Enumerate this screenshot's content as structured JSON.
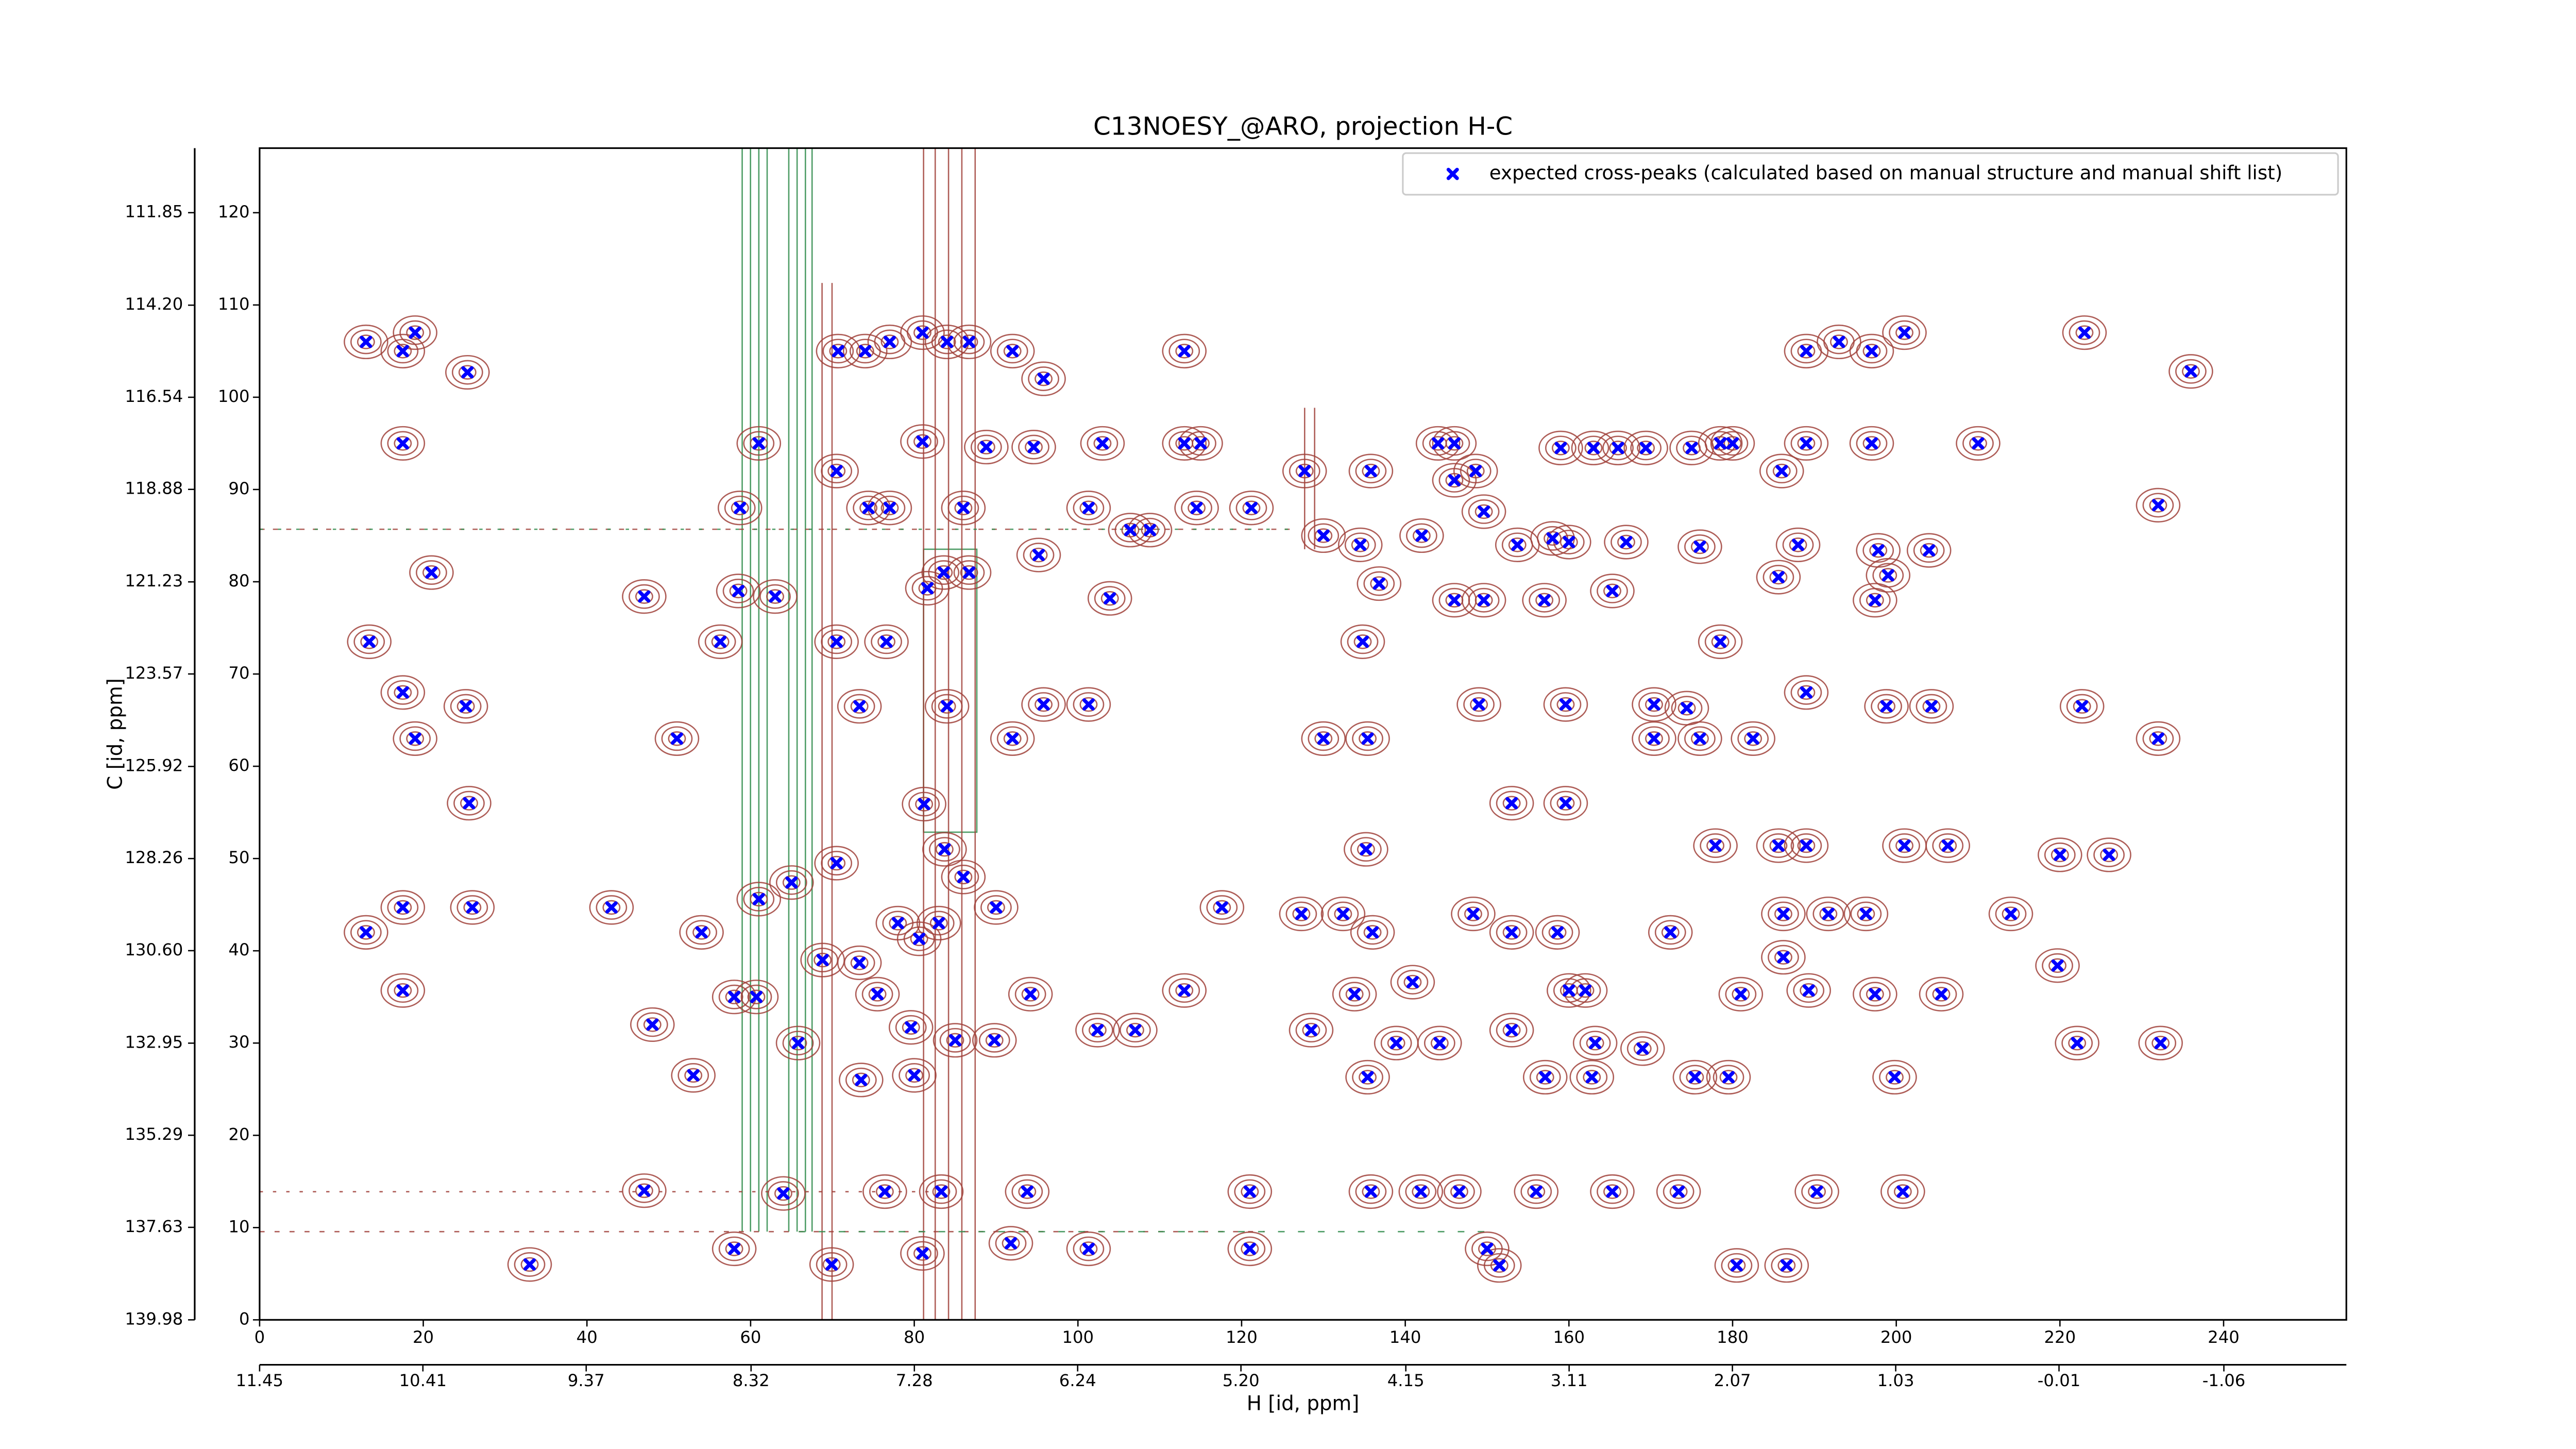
{
  "chart_data": {
    "type": "scatter",
    "title": "C13NOESY_@ARO, projection H-C",
    "xlabel": "H [id, ppm]",
    "ylabel": "C [id, ppm]",
    "xlim": [
      0,
      255
    ],
    "ylim": [
      0,
      127
    ],
    "xticks": [
      0,
      20,
      40,
      60,
      80,
      100,
      120,
      140,
      160,
      180,
      200,
      220,
      240
    ],
    "yticks": [
      0,
      10,
      20,
      30,
      40,
      50,
      60,
      70,
      80,
      90,
      100,
      110,
      120
    ],
    "x2lim": [
      11.45,
      -1.84
    ],
    "x2ticks": [
      11.45,
      10.41,
      9.37,
      8.32,
      7.28,
      6.24,
      {
        "value": 5.2,
        "label": "5.20"
      },
      4.15,
      3.11,
      2.07,
      1.03,
      -0.01,
      -1.06
    ],
    "y2lim": [
      139.98,
      110.21
    ],
    "y2ticks": [
      139.98,
      137.63,
      135.29,
      132.95,
      {
        "value": 130.6,
        "label": "130.60"
      },
      128.26,
      125.92,
      123.57,
      121.23,
      118.88,
      116.54,
      {
        "value": 114.2,
        "label": "114.20"
      },
      111.85
    ],
    "legend": "upper right",
    "x": [
      13,
      17.5,
      19,
      25.4,
      17.5,
      21,
      13.4,
      17.5,
      19,
      25.2,
      25.6,
      13,
      17.5,
      26,
      17.5,
      43,
      48,
      51,
      47,
      33,
      47,
      53,
      54,
      58,
      60.7,
      61,
      64,
      63,
      58.5,
      56.3,
      65.8,
      65,
      58.7,
      61,
      70.7,
      74,
      77,
      81,
      84,
      86.7,
      92,
      95.8,
      103,
      113,
      115,
      113,
      189,
      193,
      197,
      201,
      223,
      236,
      144,
      146,
      159,
      163,
      166,
      169.4,
      175,
      178.5,
      180,
      189,
      197,
      210,
      127.7,
      135.8,
      146,
      148.6,
      186,
      232,
      130,
      134.5,
      142,
      149.6,
      153.7,
      158,
      160,
      167,
      176,
      188,
      197.8,
      204,
      136.8,
      146,
      149.6,
      157,
      165.3,
      185.6,
      197.4,
      199,
      134.8,
      178.5,
      149,
      159.6,
      170.4,
      174.4,
      189,
      198.8,
      204.3,
      222.7,
      130,
      135.4,
      170.4,
      176,
      182.5,
      232,
      153,
      159.6,
      135.2,
      177.9,
      185.6,
      189,
      201,
      206.3,
      220,
      226,
      127.3,
      132.4,
      136,
      148.3,
      153,
      158.6,
      172.4,
      186.2,
      191.7,
      196.3,
      214,
      186.2,
      219.7,
      133.8,
      140.9,
      160,
      162,
      181,
      189.3,
      197.4,
      205.5,
      128.5,
      138.9,
      144.2,
      153,
      163.2,
      169,
      222.1,
      232.3,
      135.4,
      157.1,
      162.8,
      175.4,
      179.5,
      199.8,
      135.8,
      141.9,
      146.6,
      156,
      165.3,
      173.4,
      190.3,
      200.8,
      150,
      151.5,
      180.5,
      186.6,
      121,
      121,
      101.3,
      91.8,
      81,
      69.9,
      58,
      76.4,
      83.3,
      93.8,
      80.6,
      83.7,
      86,
      90,
      94.2,
      75.5,
      79.6,
      85,
      89.8,
      102.4,
      107,
      113,
      117.6,
      68.8,
      73.3,
      70.5,
      73.5,
      80,
      83,
      78,
      76.6,
      70.5,
      73.3,
      84,
      92,
      95.8,
      101.3,
      81.2,
      81.6,
      83.6,
      86.7,
      86,
      77,
      74.4,
      70.5,
      81,
      88.8,
      94.6,
      101.3,
      106.4,
      108.8,
      95.2,
      103.9,
      114.5,
      121.2
    ],
    "series": [
      {
        "name": "expected cross-peaks (calculated based on manual structure and manual shift list)",
        "color": "#0000ff",
        "values": [
          106,
          105,
          107,
          102.7,
          95,
          81,
          73.5,
          68,
          63,
          66.5,
          56,
          42,
          44.7,
          44.7,
          35.7,
          44.7,
          32,
          63,
          78.4,
          6,
          14,
          26.5,
          42,
          35,
          35,
          45.6,
          13.7,
          78.4,
          79,
          73.5,
          30,
          47.4,
          88,
          95,
          105,
          105,
          106,
          107,
          106,
          106,
          105,
          102,
          95,
          95,
          95,
          105,
          105,
          106,
          105,
          107,
          107,
          102.8,
          95,
          95,
          94.5,
          94.5,
          94.5,
          94.5,
          94.5,
          95,
          95,
          95,
          95,
          95,
          92,
          92,
          91,
          92,
          92,
          88.3,
          85,
          84,
          85,
          87.6,
          84,
          84.7,
          84.3,
          84.3,
          83.8,
          84,
          83.4,
          83.4,
          79.8,
          78,
          78,
          78,
          79,
          80.5,
          78,
          80.7,
          73.5,
          73.5,
          66.7,
          66.7,
          66.7,
          66.3,
          68,
          66.5,
          66.5,
          66.5,
          63,
          63,
          63,
          63,
          63,
          63,
          56,
          56,
          51,
          51.4,
          51.4,
          51.4,
          51.4,
          51.4,
          50.4,
          50.4,
          44,
          44,
          42,
          44,
          42,
          42,
          42,
          44,
          44,
          44,
          44,
          39.3,
          38.4,
          35.3,
          36.6,
          35.7,
          35.7,
          35.3,
          35.7,
          35.3,
          35.3,
          31.4,
          30,
          30,
          31.4,
          30,
          29.4,
          30,
          30,
          26.3,
          26.3,
          26.3,
          26.3,
          26.3,
          26.3,
          13.9,
          13.9,
          13.9,
          13.9,
          13.9,
          13.9,
          13.9,
          13.9,
          7.7,
          5.9,
          5.9,
          5.9,
          13.9,
          7.7,
          7.7,
          8.3,
          7.2,
          6,
          7.7,
          13.9,
          13.9,
          13.9,
          41.3,
          51,
          48,
          44.7,
          35.3,
          35.3,
          31.7,
          30.3,
          30.3,
          31.4,
          31.4,
          35.7,
          44.7,
          39,
          38.7,
          49.5,
          26,
          26.5,
          43,
          43,
          73.5,
          73.5,
          66.5,
          66.5,
          63,
          66.7,
          66.7,
          55.9,
          79.3,
          81,
          81,
          88,
          88,
          88,
          92,
          95.2,
          94.6,
          94.6,
          88,
          85.6,
          85.6,
          82.9,
          78.2,
          88,
          88
        ]
      }
    ]
  }
}
